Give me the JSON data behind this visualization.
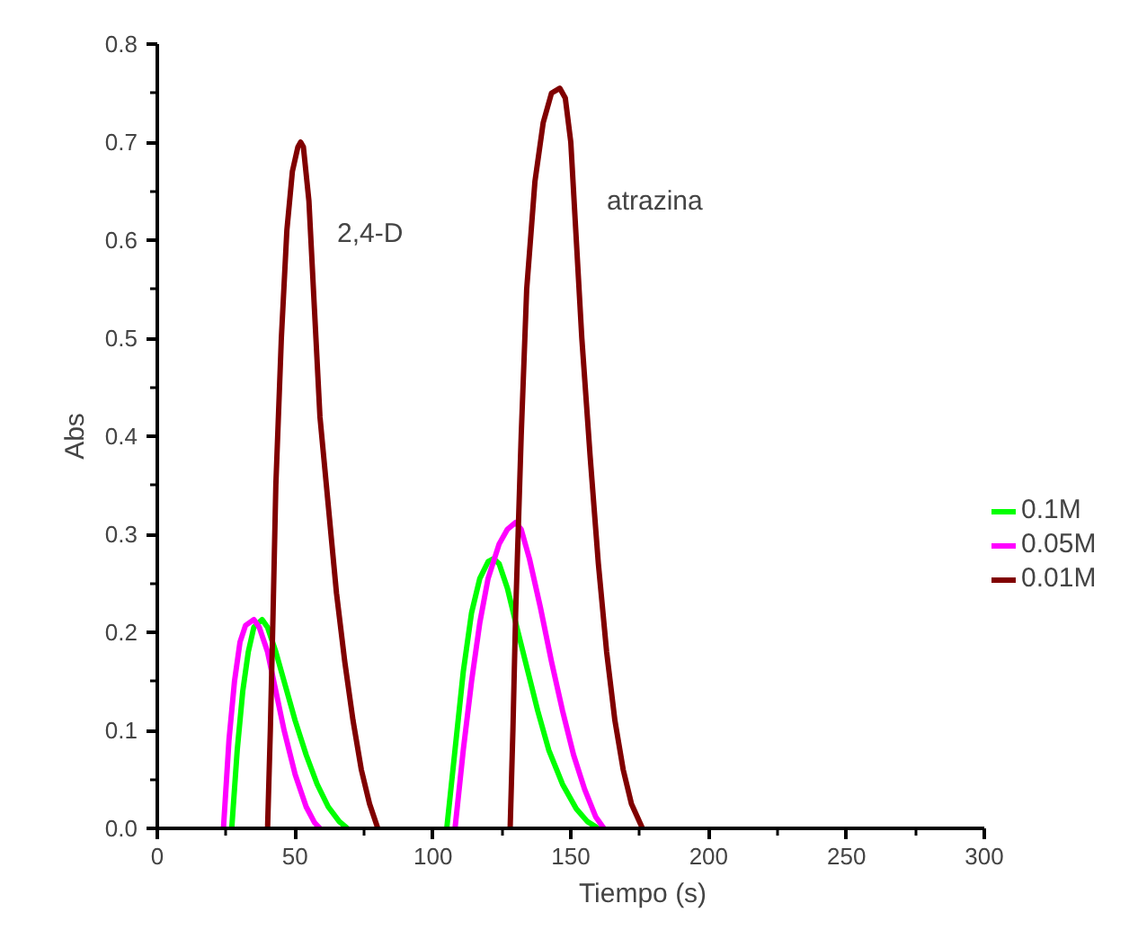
{
  "chart_data": {
    "type": "line",
    "xlabel": "Tiempo (s)",
    "ylabel": "Abs",
    "xlim": [
      0,
      300
    ],
    "xticks": [
      0,
      50,
      100,
      150,
      200,
      250,
      300
    ],
    "ylim": [
      0,
      0.8
    ],
    "yticks": [
      {
        "value": 0,
        "label": "0.0"
      },
      0.1,
      0.2,
      0.3,
      0.4,
      0.5,
      0.6,
      0.7,
      0.8
    ],
    "grid": false,
    "legend": "right",
    "marker": "none",
    "line_style": "solid",
    "annotations": [
      "2,4-D",
      "atrazina"
    ],
    "series": [
      {
        "name": "0.1M",
        "color": "#00ff00",
        "x": [
          27,
          29,
          31,
          33,
          35,
          38,
          40,
          43,
          46,
          50,
          54,
          58,
          62,
          66,
          69,
          null,
          105,
          108,
          111,
          114,
          117,
          120,
          122,
          124,
          127,
          130,
          134,
          138,
          142,
          147,
          152,
          156,
          160
        ],
        "values": [
          0,
          0.08,
          0.14,
          0.18,
          0.205,
          0.213,
          0.205,
          0.18,
          0.15,
          0.11,
          0.075,
          0.045,
          0.022,
          0.007,
          0,
          null,
          0,
          0.08,
          0.16,
          0.22,
          0.255,
          0.272,
          0.275,
          0.27,
          0.245,
          0.21,
          0.165,
          0.12,
          0.08,
          0.045,
          0.02,
          0.007,
          0
        ]
      },
      {
        "name": "0.05M",
        "color": "#ff00ff",
        "x": [
          24,
          26,
          28,
          30,
          32,
          35,
          37,
          40,
          43,
          46,
          50,
          54,
          57,
          59,
          null,
          108,
          111,
          114,
          117,
          120,
          124,
          127,
          130,
          132,
          135,
          139,
          143,
          147,
          151,
          155,
          159,
          162
        ],
        "values": [
          0,
          0.09,
          0.15,
          0.19,
          0.207,
          0.213,
          0.205,
          0.18,
          0.14,
          0.1,
          0.055,
          0.022,
          0.006,
          0,
          null,
          0,
          0.08,
          0.15,
          0.21,
          0.255,
          0.29,
          0.305,
          0.312,
          0.305,
          0.275,
          0.225,
          0.17,
          0.12,
          0.075,
          0.04,
          0.012,
          0
        ]
      },
      {
        "name": "0.01M",
        "color": "#800000",
        "x": [
          40,
          41,
          42,
          43,
          45,
          47,
          49,
          51,
          52,
          53,
          55,
          57,
          59,
          62,
          65,
          68,
          71,
          74,
          77,
          80,
          null,
          128,
          129,
          130,
          132,
          134,
          137,
          140,
          143,
          146,
          148,
          150,
          152,
          154,
          157,
          160,
          163,
          166,
          169,
          172,
          176
        ],
        "values": [
          0,
          0.1,
          0.22,
          0.35,
          0.5,
          0.61,
          0.67,
          0.695,
          0.7,
          0.695,
          0.64,
          0.53,
          0.42,
          0.33,
          0.24,
          0.17,
          0.11,
          0.06,
          0.025,
          0,
          null,
          0,
          0.1,
          0.22,
          0.4,
          0.55,
          0.66,
          0.72,
          0.75,
          0.755,
          0.745,
          0.7,
          0.6,
          0.5,
          0.38,
          0.27,
          0.18,
          0.11,
          0.06,
          0.025,
          0
        ]
      }
    ]
  }
}
